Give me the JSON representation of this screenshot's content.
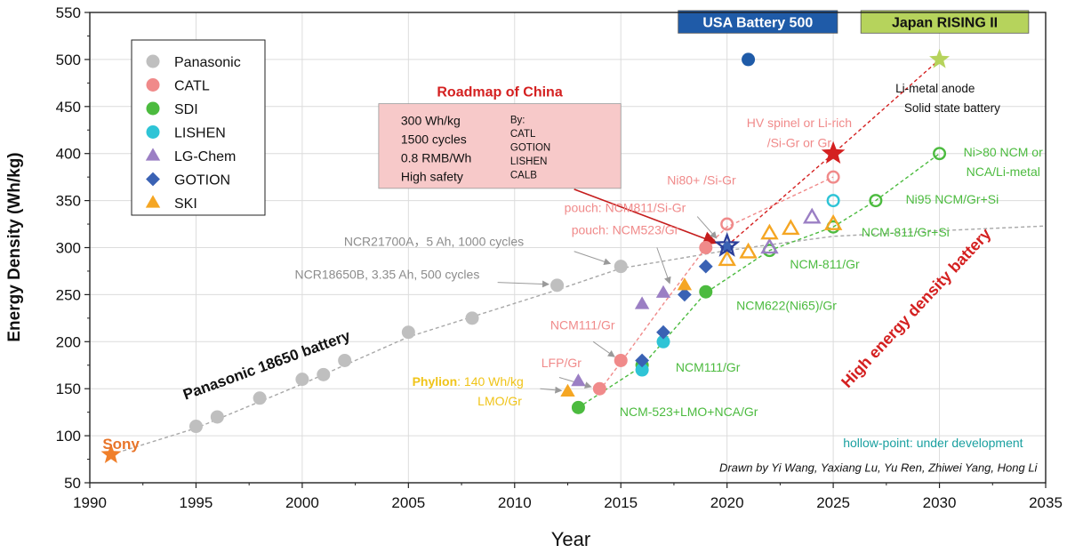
{
  "chart_data": {
    "type": "scatter",
    "xlabel": "Year",
    "ylabel": "Energy Density (Wh/kg)",
    "xlim": [
      1990,
      2035
    ],
    "ylim": [
      50,
      550
    ],
    "xticks": [
      1990,
      1995,
      2000,
      2005,
      2010,
      2015,
      2020,
      2025,
      2030,
      2035
    ],
    "yticks": [
      50,
      100,
      150,
      200,
      250,
      300,
      350,
      400,
      450,
      500,
      550
    ],
    "grid": true,
    "legend": {
      "position": "top-left",
      "entries": [
        {
          "name": "Panasonic",
          "marker": "circle",
          "color": "#bfbfbf"
        },
        {
          "name": "CATL",
          "marker": "circle",
          "color": "#f08a8a"
        },
        {
          "name": "SDI",
          "marker": "circle",
          "color": "#4cbb3f"
        },
        {
          "name": "LISHEN",
          "marker": "circle",
          "color": "#2ec4d6"
        },
        {
          "name": "LG-Chem",
          "marker": "triangle",
          "color": "#9b7fc4"
        },
        {
          "name": "GOTION",
          "marker": "diamond",
          "color": "#3a62b4"
        },
        {
          "name": "SKI",
          "marker": "triangle",
          "color": "#f5a623"
        }
      ]
    },
    "series": [
      {
        "name": "Panasonic",
        "marker": "circle",
        "color": "#bfbfbf",
        "filled": true,
        "x": [
          1995,
          1996,
          1998,
          2000,
          2001,
          2002,
          2005,
          2008,
          2012,
          2015
        ],
        "y": [
          110,
          120,
          140,
          160,
          165,
          180,
          210,
          225,
          260,
          280
        ]
      },
      {
        "name": "CATL",
        "marker": "circle",
        "color": "#f08a8a",
        "filled": true,
        "x": [
          2014,
          2015,
          2019
        ],
        "y": [
          150,
          180,
          300
        ]
      },
      {
        "name": "CATL",
        "marker": "circle",
        "color": "#f08a8a",
        "filled": false,
        "x": [
          2020,
          2025
        ],
        "y": [
          325,
          375
        ]
      },
      {
        "name": "SDI",
        "marker": "circle",
        "color": "#4cbb3f",
        "filled": true,
        "x": [
          2013,
          2016,
          2019
        ],
        "y": [
          130,
          175,
          253
        ]
      },
      {
        "name": "SDI",
        "marker": "circle",
        "color": "#4cbb3f",
        "filled": false,
        "x": [
          2022,
          2025,
          2027,
          2030
        ],
        "y": [
          297,
          322,
          350,
          400
        ]
      },
      {
        "name": "LISHEN",
        "marker": "circle",
        "color": "#2ec4d6",
        "filled": true,
        "x": [
          2016,
          2017
        ],
        "y": [
          170,
          200
        ]
      },
      {
        "name": "LISHEN",
        "marker": "circle",
        "color": "#2ec4d6",
        "filled": false,
        "x": [
          2025
        ],
        "y": [
          350
        ]
      },
      {
        "name": "LG-Chem",
        "marker": "triangle",
        "color": "#9b7fc4",
        "filled": true,
        "x": [
          2013,
          2016,
          2017
        ],
        "y": [
          158,
          240,
          252
        ]
      },
      {
        "name": "LG-Chem",
        "marker": "triangle",
        "color": "#9b7fc4",
        "filled": false,
        "x": [
          2022,
          2024
        ],
        "y": [
          300,
          332
        ]
      },
      {
        "name": "GOTION",
        "marker": "diamond",
        "color": "#3a62b4",
        "filled": true,
        "x": [
          2016,
          2017,
          2018,
          2019,
          2020
        ],
        "y": [
          180,
          210,
          250,
          280,
          300
        ]
      },
      {
        "name": "SKI",
        "marker": "triangle",
        "color": "#f5a623",
        "filled": true,
        "x": [
          2012.5,
          2018
        ],
        "y": [
          147,
          260
        ]
      },
      {
        "name": "SKI",
        "marker": "triangle",
        "color": "#f5a623",
        "filled": false,
        "x": [
          2020,
          2021,
          2022,
          2023,
          2025
        ],
        "y": [
          287,
          295,
          315,
          320,
          325
        ]
      }
    ],
    "special_points": [
      {
        "name": "Sony",
        "marker": "star",
        "color": "#f07f2a",
        "filled": true,
        "x": 1991,
        "y": 80
      },
      {
        "name": "China 2020",
        "marker": "star",
        "color": "#2c3f99",
        "filled": false,
        "x": 2020,
        "y": 302
      },
      {
        "name": "China 2025",
        "marker": "star",
        "color": "#d42020",
        "filled": true,
        "x": 2025,
        "y": 400
      },
      {
        "name": "USA Battery 500",
        "marker": "circle",
        "color": "#1f5ba8",
        "filled": true,
        "x": 2021,
        "y": 500
      },
      {
        "name": "Japan RISING II",
        "marker": "star",
        "color": "#b6d35c",
        "filled": true,
        "x": 2030,
        "y": 500
      }
    ],
    "trend_lines": [
      {
        "color": "#a8a8a8",
        "points": [
          [
            1991,
            80
          ],
          [
            1995,
            108
          ],
          [
            2000,
            155
          ],
          [
            2005,
            205
          ],
          [
            2012,
            255
          ],
          [
            2015,
            278
          ],
          [
            2020,
            297
          ],
          [
            2025,
            312
          ],
          [
            2030,
            318
          ],
          [
            2035,
            323
          ]
        ]
      },
      {
        "color": "#f08a8a",
        "points": [
          [
            2014,
            148
          ],
          [
            2015,
            178
          ],
          [
            2017,
            240
          ],
          [
            2019,
            300
          ],
          [
            2020,
            322
          ],
          [
            2025,
            375
          ]
        ]
      },
      {
        "color": "#d42020",
        "points": [
          [
            2020,
            302
          ],
          [
            2025,
            400
          ],
          [
            2030,
            500
          ]
        ]
      },
      {
        "color": "#4cbb3f",
        "points": [
          [
            2013,
            130
          ],
          [
            2016,
            174
          ],
          [
            2019,
            252
          ],
          [
            2022,
            297
          ],
          [
            2025,
            322
          ],
          [
            2027,
            350
          ],
          [
            2030,
            400
          ]
        ]
      }
    ],
    "panel_labels": [
      {
        "text": "Sony",
        "color": "#e8752a",
        "x": 1990.6,
        "y": 86,
        "size": 17,
        "weight": "bold",
        "rotate": 0
      },
      {
        "text": "Panasonic 18650 battery",
        "color": "#111111",
        "x": 1994.5,
        "y": 138,
        "size": 17,
        "weight": "bold",
        "rotate": -20
      },
      {
        "text": "High energy density battery",
        "color": "#d42020",
        "x": 2025.7,
        "y": 150,
        "size": 18,
        "weight": "bold",
        "rotate": -47
      },
      {
        "text": "hollow-point: under development",
        "color": "#1aa0a0",
        "x": 2029.7,
        "y": 88,
        "size": 14,
        "weight": "normal",
        "rotate": 0,
        "anchor": "middle"
      },
      {
        "text": "Drawn by Yi Wang, Yaxiang Lu, Yu Ren, Zhiwei Yang, Hong Li",
        "color": "#111111",
        "x": 2034.6,
        "y": 62,
        "size": 13,
        "weight": "normal",
        "rotate": 0,
        "anchor": "end",
        "italic": true
      }
    ],
    "annotations": [
      {
        "text": "NCR21700A，5 Ah, 1000 cycles",
        "color": "#8c8c8c",
        "x": 2006.2,
        "y": 302,
        "size": 14,
        "anchor": "middle",
        "arrow": [
          [
            2012.8,
            296
          ],
          [
            2014.5,
            283
          ]
        ]
      },
      {
        "text": "NCR18650B, 3.35 Ah, 500 cycles",
        "color": "#8c8c8c",
        "x": 2004.0,
        "y": 267,
        "size": 14,
        "anchor": "middle",
        "arrow": [
          [
            2009.2,
            263
          ],
          [
            2011.6,
            261
          ]
        ]
      },
      {
        "text": "pouch: NCM811/Si-Gr",
        "color": "#f08a8a",
        "x": 2015.2,
        "y": 338,
        "size": 14,
        "anchor": "middle",
        "arrow": [
          [
            2018.6,
            333
          ],
          [
            2019.5,
            310
          ]
        ]
      },
      {
        "text": "pouch: NCM523/Gr",
        "color": "#f08a8a",
        "x": 2015.2,
        "y": 314,
        "size": 14,
        "anchor": "middle",
        "arrow": [
          [
            2016.7,
            300
          ],
          [
            2017.3,
            262
          ]
        ]
      },
      {
        "text": "NCM111/Gr",
        "color": "#f08a8a",
        "x": 2013.2,
        "y": 213,
        "size": 14,
        "anchor": "middle",
        "arrow": [
          [
            2013.7,
            200
          ],
          [
            2014.7,
            184
          ]
        ]
      },
      {
        "text": "LFP/Gr",
        "color": "#f08a8a",
        "x": 2012.2,
        "y": 173,
        "size": 14,
        "anchor": "middle",
        "arrow": [
          [
            2012.1,
            162
          ],
          [
            2013.6,
            152
          ]
        ]
      },
      {
        "text": "Ni80+ /Si-Gr",
        "color": "#f08a8a",
        "x": 2018.8,
        "y": 367,
        "size": 14,
        "anchor": "middle",
        "arrow": null
      },
      {
        "text": "HV spinel or Li-rich",
        "color": "#f08a8a",
        "x": 2023.4,
        "y": 428,
        "size": 14,
        "anchor": "middle",
        "arrow": null
      },
      {
        "text": "/Si-Gr or Gr",
        "color": "#f08a8a",
        "x": 2023.4,
        "y": 407,
        "size": 14,
        "anchor": "middle",
        "arrow": null
      },
      {
        "text": "Li-metal anode",
        "color": "#111111",
        "x": 2029.8,
        "y": 465,
        "size": 13.5,
        "anchor": "middle",
        "arrow": null
      },
      {
        "text": "Solid state battery",
        "color": "#111111",
        "x": 2030.6,
        "y": 444,
        "size": 13.5,
        "anchor": "middle",
        "arrow": null
      },
      {
        "text": "Ni>80 NCM or",
        "color": "#4cbb3f",
        "x": 2033.0,
        "y": 397,
        "size": 14,
        "anchor": "middle",
        "arrow": null
      },
      {
        "text": "NCA/Li-metal",
        "color": "#4cbb3f",
        "x": 2033.0,
        "y": 376,
        "size": 14,
        "anchor": "middle",
        "arrow": null
      },
      {
        "text": "Ni95 NCM/Gr+Si",
        "color": "#4cbb3f",
        "x": 2030.6,
        "y": 347,
        "size": 14,
        "anchor": "middle",
        "arrow": null
      },
      {
        "text": "NCM-811/Gr+Si",
        "color": "#4cbb3f",
        "x": 2028.4,
        "y": 312,
        "size": 14,
        "anchor": "middle",
        "arrow": null
      },
      {
        "text": "NCM-811/Gr",
        "color": "#4cbb3f",
        "x": 2024.6,
        "y": 278,
        "size": 14,
        "anchor": "middle",
        "arrow": null
      },
      {
        "text": "NCM622(Ni65)/Gr",
        "color": "#4cbb3f",
        "x": 2022.8,
        "y": 234,
        "size": 14,
        "anchor": "middle",
        "arrow": null
      },
      {
        "text": "NCM111/Gr",
        "color": "#4cbb3f",
        "x": 2019.1,
        "y": 168,
        "size": 14,
        "anchor": "middle",
        "arrow": null
      },
      {
        "text": "NCM-523+LMO+NCA/Gr",
        "color": "#4cbb3f",
        "x": 2018.2,
        "y": 121,
        "size": 14,
        "anchor": "middle",
        "arrow": null
      },
      {
        "text": "LMO/Gr",
        "color": "#f0c419",
        "x": 2009.3,
        "y": 132,
        "size": 14,
        "anchor": "middle",
        "arrow": null
      }
    ],
    "phylion_label": {
      "bold": "Phylion",
      "rest": ": 140 Wh/kg",
      "color": "#f0c419",
      "x": 2007.8,
      "y": 153,
      "size": 14,
      "arrow": [
        [
          2011.2,
          150
        ],
        [
          2012.2,
          148
        ]
      ]
    },
    "roadmap_box": {
      "title": "Roadmap of China",
      "title_color": "#d42020",
      "fill": "#f7c9c9",
      "left_lines": [
        "300 Wh/kg",
        "1500 cycles",
        "0.8 RMB/Wh",
        "High safety"
      ],
      "by_lines": [
        "By:",
        "CATL",
        "GOTION",
        "LISHEN",
        "CALB"
      ],
      "x0": 2003.6,
      "x1": 2015.0,
      "y0": 363,
      "y1": 453,
      "arrow": [
        [
          2012.8,
          362
        ],
        [
          2019.5,
          305
        ]
      ]
    },
    "header_boxes": [
      {
        "text": "USA Battery 500",
        "fill": "#1f5ba8",
        "text_color": "#ffffff",
        "x0": 2017.7,
        "x1": 2025.2,
        "y0": 528,
        "y1": 552
      },
      {
        "text": "Japan RISING II",
        "fill": "#b6d35c",
        "text_color": "#111111",
        "x0": 2026.3,
        "x1": 2034.2,
        "y0": 528,
        "y1": 552
      }
    ]
  }
}
